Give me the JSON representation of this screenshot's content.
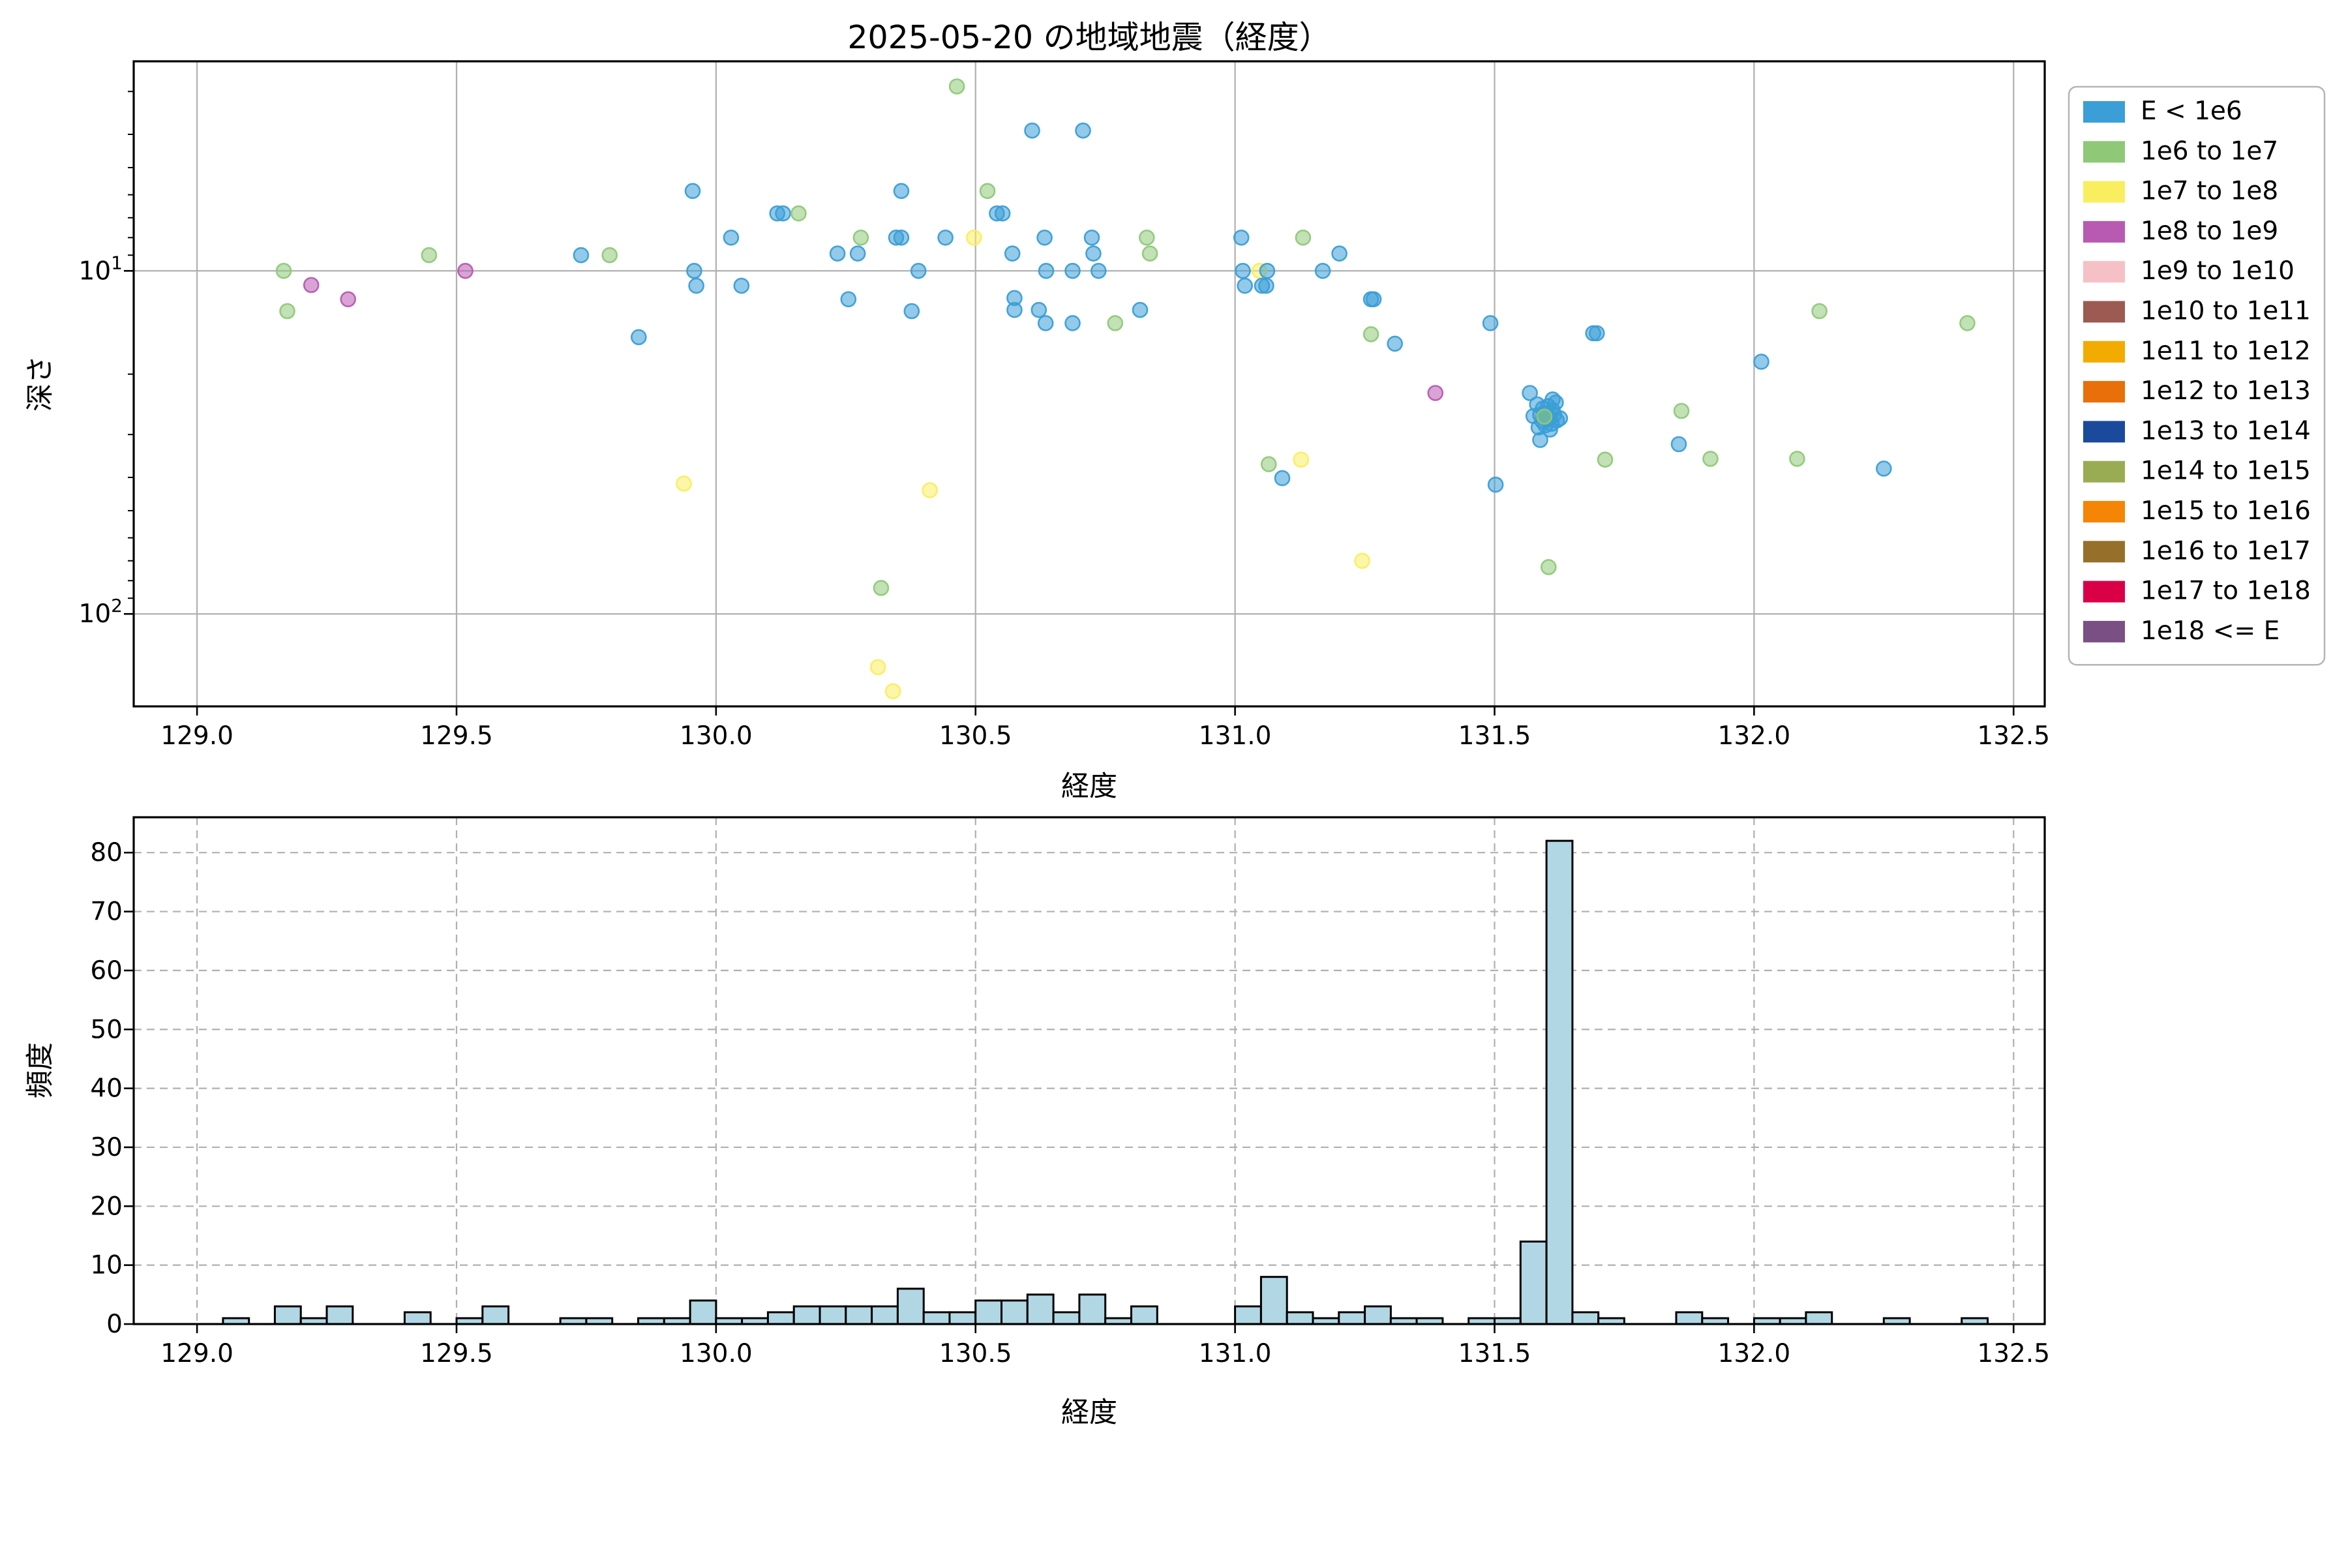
{
  "figure": {
    "title": "2025-05-20 の地域地震（経度）",
    "background": "#ffffff"
  },
  "palette": {
    "histogram_bar_fill": "#b1d7e4",
    "histogram_bar_edge": "#000000",
    "grid_color": "#b0b0b0",
    "spine_color": "#000000"
  },
  "legend": {
    "entries": [
      {
        "label": "E < 1e6",
        "color": "#3b9ed7"
      },
      {
        "label": "1e6 to 1e7",
        "color": "#8fc978"
      },
      {
        "label": "1e7 to 1e8",
        "color": "#f9ee60"
      },
      {
        "label": "1e8 to 1e9",
        "color": "#b85ab2"
      },
      {
        "label": "1e9 to 1e10",
        "color": "#f6c1c6"
      },
      {
        "label": "1e10 to 1e11",
        "color": "#9d5a52"
      },
      {
        "label": "1e11 to 1e12",
        "color": "#f2ab00"
      },
      {
        "label": "1e12 to 1e13",
        "color": "#e86f0a"
      },
      {
        "label": "1e13 to 1e14",
        "color": "#1b4a9d"
      },
      {
        "label": "1e14 to 1e15",
        "color": "#99ac53"
      },
      {
        "label": "1e15 to 1e16",
        "color": "#f58504"
      },
      {
        "label": "1e16 to 1e17",
        "color": "#96702a"
      },
      {
        "label": "1e17 to 1e18",
        "color": "#da0047"
      },
      {
        "label": "1e18 <= E",
        "color": "#7a5084"
      }
    ]
  },
  "chart_data": [
    {
      "type": "scatter",
      "title": "2025-05-20 の地域地震（経度）",
      "xlabel": "経度",
      "ylabel": "深さ",
      "x_ticks": [
        "129.0",
        "129.5",
        "130.0",
        "130.5",
        "131.0",
        "131.5",
        "132.0",
        "132.5"
      ],
      "x_tick_values": [
        129.0,
        129.5,
        130.0,
        130.5,
        131.0,
        131.5,
        132.0,
        132.5
      ],
      "y_ticks": [
        {
          "base": "10",
          "exp": "1",
          "value": 10
        },
        {
          "base": "10",
          "exp": "2",
          "value": 100
        }
      ],
      "y_minor_ticks": [
        3,
        4,
        5,
        6,
        7,
        8,
        9,
        20,
        30,
        40,
        50,
        60,
        70,
        80,
        90
      ],
      "xlim": [
        128.878,
        132.56
      ],
      "ylim_log_inverted": [
        2.45,
        186
      ],
      "grid": "solid",
      "legend_position": "outside-right",
      "point_bins": [
        "E < 1e6",
        "1e6 to 1e7",
        "1e7 to 1e8",
        "1e8 to 1e9"
      ],
      "points": [
        [
          129.167,
          10.0,
          1
        ],
        [
          129.22,
          11.0,
          3
        ],
        [
          129.291,
          12.1,
          3
        ],
        [
          129.174,
          13.1,
          1
        ],
        [
          129.447,
          9.0,
          1
        ],
        [
          129.517,
          10.0,
          3
        ],
        [
          129.74,
          9.0,
          0
        ],
        [
          129.795,
          9.0,
          1
        ],
        [
          129.851,
          15.6,
          0
        ],
        [
          129.938,
          41.7,
          2
        ],
        [
          129.955,
          5.85,
          0
        ],
        [
          129.958,
          10.0,
          0
        ],
        [
          129.962,
          11.05,
          0
        ],
        [
          130.029,
          8.0,
          0
        ],
        [
          130.049,
          11.05,
          0
        ],
        [
          130.118,
          6.8,
          0
        ],
        [
          130.129,
          6.8,
          0
        ],
        [
          130.159,
          6.8,
          1
        ],
        [
          130.234,
          8.9,
          0
        ],
        [
          130.255,
          12.1,
          0
        ],
        [
          130.273,
          8.9,
          0
        ],
        [
          130.279,
          8.0,
          1
        ],
        [
          130.312,
          143,
          2
        ],
        [
          130.318,
          84,
          1
        ],
        [
          130.341,
          168,
          2
        ],
        [
          130.347,
          8.0,
          0
        ],
        [
          130.357,
          8.0,
          0
        ],
        [
          130.357,
          5.85,
          0
        ],
        [
          130.377,
          13.1,
          0
        ],
        [
          130.39,
          10.0,
          0
        ],
        [
          130.412,
          43.6,
          2
        ],
        [
          130.442,
          8.0,
          0
        ],
        [
          130.464,
          2.9,
          1
        ],
        [
          130.497,
          8.0,
          2
        ],
        [
          130.523,
          5.85,
          1
        ],
        [
          130.541,
          6.8,
          0
        ],
        [
          130.552,
          6.8,
          0
        ],
        [
          130.571,
          8.9,
          0
        ],
        [
          130.575,
          12.0,
          0
        ],
        [
          130.575,
          13.0,
          0
        ],
        [
          130.609,
          3.9,
          0
        ],
        [
          130.622,
          13.0,
          0
        ],
        [
          130.633,
          8.0,
          0
        ],
        [
          130.636,
          10.0,
          0
        ],
        [
          130.635,
          14.2,
          0
        ],
        [
          130.687,
          10.0,
          0
        ],
        [
          130.687,
          14.2,
          0
        ],
        [
          130.707,
          3.9,
          0
        ],
        [
          130.724,
          8.0,
          0
        ],
        [
          130.727,
          8.9,
          0
        ],
        [
          130.737,
          10.0,
          0
        ],
        [
          130.769,
          14.2,
          1
        ],
        [
          130.817,
          13.0,
          0
        ],
        [
          130.83,
          8.0,
          1
        ],
        [
          130.836,
          8.9,
          1
        ],
        [
          131.012,
          8.0,
          0
        ],
        [
          131.015,
          10.0,
          0
        ],
        [
          131.019,
          11.05,
          0
        ],
        [
          131.047,
          10.0,
          2
        ],
        [
          131.052,
          11.05,
          0
        ],
        [
          131.06,
          11.05,
          0
        ],
        [
          131.062,
          10.0,
          0
        ],
        [
          131.065,
          36.6,
          1
        ],
        [
          131.091,
          40.2,
          0
        ],
        [
          131.127,
          35.5,
          2
        ],
        [
          131.131,
          8.0,
          1
        ],
        [
          131.169,
          10.0,
          0
        ],
        [
          131.201,
          8.9,
          0
        ],
        [
          131.245,
          70,
          2
        ],
        [
          131.262,
          12.1,
          0
        ],
        [
          131.267,
          12.1,
          0
        ],
        [
          131.262,
          15.3,
          1
        ],
        [
          131.308,
          16.3,
          0
        ],
        [
          131.386,
          22.7,
          3
        ],
        [
          131.492,
          14.2,
          0
        ],
        [
          131.502,
          42.0,
          0
        ],
        [
          131.568,
          22.7,
          0
        ],
        [
          131.612,
          23.7,
          0
        ],
        [
          131.582,
          24.5,
          0
        ],
        [
          131.593,
          25.2,
          0
        ],
        [
          131.603,
          24.8,
          0
        ],
        [
          131.612,
          25.5,
          0
        ],
        [
          131.588,
          26.3,
          0
        ],
        [
          131.597,
          26.0,
          0
        ],
        [
          131.606,
          26.8,
          0
        ],
        [
          131.615,
          26.2,
          0
        ],
        [
          131.592,
          27.4,
          0
        ],
        [
          131.602,
          27.1,
          0
        ],
        [
          131.61,
          27.9,
          0
        ],
        [
          131.62,
          27.3,
          0
        ],
        [
          131.585,
          28.6,
          0
        ],
        [
          131.607,
          29.0,
          0
        ],
        [
          131.598,
          28.2,
          0
        ],
        [
          131.575,
          26.5,
          0
        ],
        [
          131.618,
          24.2,
          0
        ],
        [
          131.626,
          26.9,
          0
        ],
        [
          131.596,
          26.6,
          1
        ],
        [
          131.588,
          31.1,
          0
        ],
        [
          131.604,
          73,
          1
        ],
        [
          131.69,
          15.2,
          0
        ],
        [
          131.697,
          15.2,
          0
        ],
        [
          131.713,
          35.5,
          1
        ],
        [
          131.855,
          32.0,
          0
        ],
        [
          131.86,
          25.6,
          1
        ],
        [
          131.916,
          35.3,
          1
        ],
        [
          132.014,
          18.4,
          0
        ],
        [
          132.083,
          35.3,
          1
        ],
        [
          132.126,
          13.1,
          1
        ],
        [
          132.25,
          37.7,
          0
        ],
        [
          132.411,
          14.2,
          1
        ]
      ]
    },
    {
      "type": "bar",
      "xlabel": "経度",
      "ylabel": "頻度",
      "x_ticks": [
        "129.0",
        "129.5",
        "130.0",
        "130.5",
        "131.0",
        "131.5",
        "132.0",
        "132.5"
      ],
      "x_tick_values": [
        129.0,
        129.5,
        130.0,
        130.5,
        131.0,
        131.5,
        132.0,
        132.5
      ],
      "y_ticks": [
        "0",
        "10",
        "20",
        "30",
        "40",
        "50",
        "60",
        "70",
        "80"
      ],
      "y_tick_values": [
        0,
        10,
        20,
        30,
        40,
        50,
        60,
        70,
        80
      ],
      "xlim": [
        128.878,
        132.56
      ],
      "ylim": [
        0,
        86
      ],
      "grid": "dashed",
      "bin_width": 0.05,
      "bins": [
        [
          129.05,
          1
        ],
        [
          129.15,
          3
        ],
        [
          129.2,
          1
        ],
        [
          129.25,
          3
        ],
        [
          129.4,
          2
        ],
        [
          129.5,
          1
        ],
        [
          129.55,
          3
        ],
        [
          129.7,
          1
        ],
        [
          129.75,
          1
        ],
        [
          129.85,
          1
        ],
        [
          129.9,
          1
        ],
        [
          129.95,
          4
        ],
        [
          130.0,
          1
        ],
        [
          130.05,
          1
        ],
        [
          130.1,
          2
        ],
        [
          130.15,
          3
        ],
        [
          130.2,
          3
        ],
        [
          130.25,
          3
        ],
        [
          130.3,
          3
        ],
        [
          130.35,
          6
        ],
        [
          130.4,
          2
        ],
        [
          130.45,
          2
        ],
        [
          130.5,
          4
        ],
        [
          130.55,
          4
        ],
        [
          130.6,
          5
        ],
        [
          130.65,
          2
        ],
        [
          130.7,
          5
        ],
        [
          130.75,
          1
        ],
        [
          130.8,
          3
        ],
        [
          131.0,
          3
        ],
        [
          131.05,
          8
        ],
        [
          131.1,
          2
        ],
        [
          131.15,
          1
        ],
        [
          131.2,
          2
        ],
        [
          131.25,
          3
        ],
        [
          131.3,
          1
        ],
        [
          131.35,
          1
        ],
        [
          131.45,
          1
        ],
        [
          131.5,
          1
        ],
        [
          131.55,
          14
        ],
        [
          131.6,
          82
        ],
        [
          131.65,
          2
        ],
        [
          131.7,
          1
        ],
        [
          131.85,
          2
        ],
        [
          131.9,
          1
        ],
        [
          132.0,
          1
        ],
        [
          132.05,
          1
        ],
        [
          132.1,
          2
        ],
        [
          132.25,
          1
        ],
        [
          132.4,
          1
        ]
      ]
    }
  ]
}
